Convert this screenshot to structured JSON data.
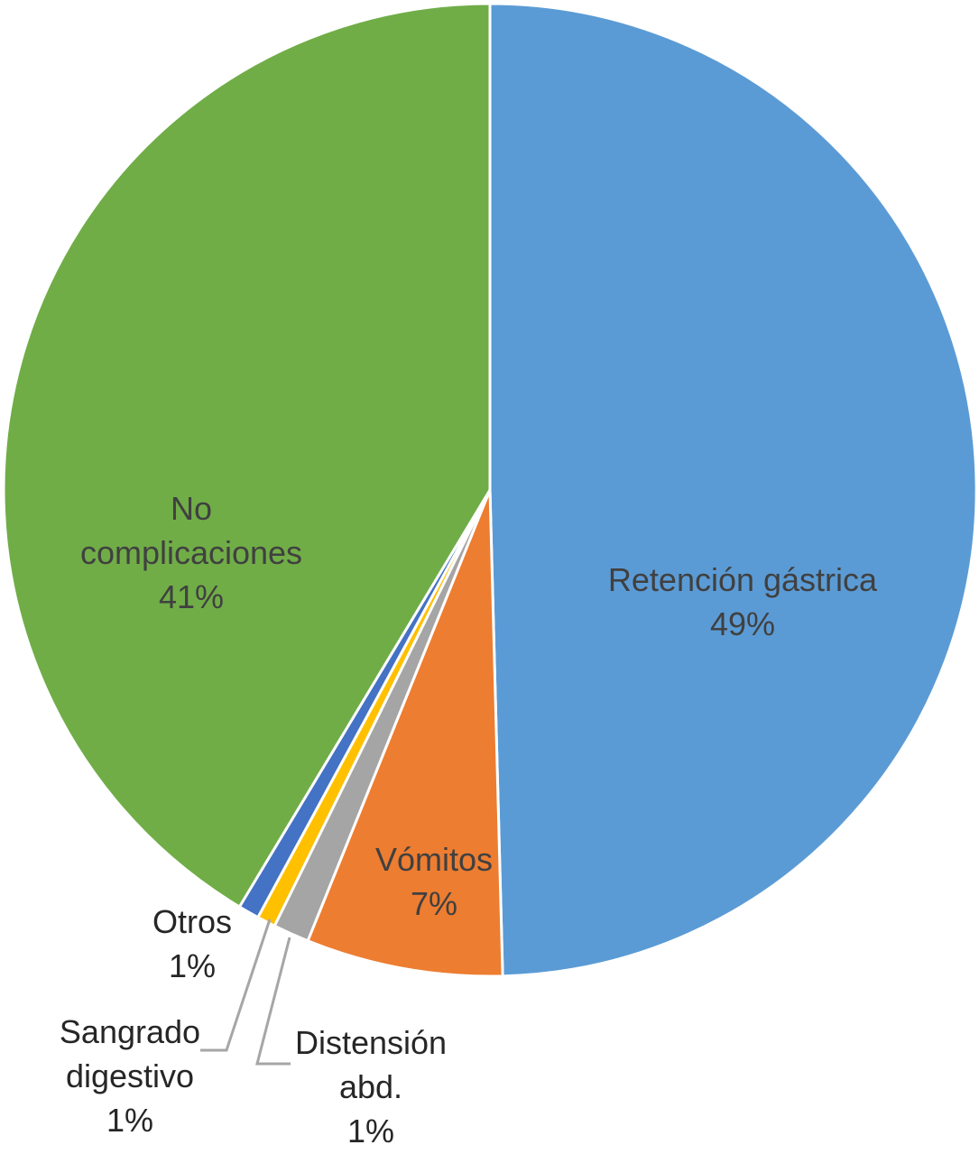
{
  "chart_data": {
    "type": "pie",
    "start": "12 o'clock, clockwise",
    "slices": [
      {
        "name": "Retención gástrica",
        "value": 49,
        "value_label": "49%",
        "color": "#5b9bd5",
        "label_lines": [
          "Retención gástrica",
          "49%"
        ]
      },
      {
        "name": "Vómitos",
        "value": 7,
        "value_label": "7%",
        "color": "#ed7d31",
        "label_lines": [
          "Vómitos",
          "7%"
        ]
      },
      {
        "name": "Distensión abd.",
        "value": 1,
        "value_label": "1%",
        "color": "#a5a5a5",
        "label_lines": [
          "Distensión",
          "abd.",
          "1%"
        ]
      },
      {
        "name": "Sangrado digestivo",
        "value": 1,
        "value_label": "1%",
        "color": "#ffc000",
        "label_lines": [
          "Sangrado",
          "digestivo",
          "1%"
        ]
      },
      {
        "name": "Otros",
        "value": 1,
        "value_label": "1%",
        "color": "#4472c4",
        "label_lines": [
          "Otros",
          "1%"
        ]
      },
      {
        "name": "No complicaciones",
        "value": 41,
        "value_label": "41%",
        "color": "#70ad47",
        "label_lines": [
          "No",
          "complicaciones",
          "41%"
        ]
      }
    ]
  }
}
